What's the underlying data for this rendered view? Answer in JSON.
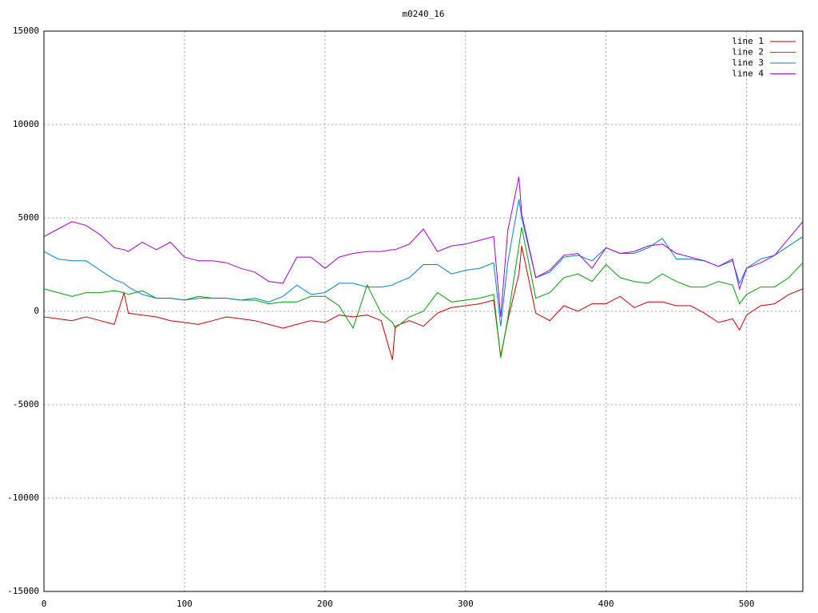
{
  "chart_data": {
    "type": "line",
    "title": "m0240_16",
    "x": [
      0,
      10,
      20,
      30,
      40,
      50,
      57,
      60,
      70,
      80,
      90,
      100,
      110,
      120,
      130,
      140,
      150,
      160,
      170,
      180,
      190,
      200,
      210,
      220,
      230,
      240,
      248,
      250,
      260,
      270,
      280,
      290,
      300,
      310,
      320,
      325,
      330,
      338,
      340,
      350,
      360,
      370,
      380,
      390,
      400,
      410,
      420,
      430,
      440,
      450,
      460,
      470,
      480,
      490,
      495,
      500,
      510,
      520,
      530,
      540
    ],
    "series": [
      {
        "name": "line 1",
        "color": "#cc0000",
        "values": [
          -300,
          -400,
          -500,
          -300,
          -500,
          -700,
          1000,
          -100,
          -200,
          -300,
          -500,
          -600,
          -700,
          -500,
          -300,
          -400,
          -500,
          -700,
          -900,
          -700,
          -500,
          -600,
          -200,
          -300,
          -200,
          -500,
          -2600,
          -800,
          -500,
          -800,
          -100,
          200,
          300,
          400,
          600,
          -2400,
          -500,
          2000,
          3500,
          -100,
          -500,
          300,
          0,
          400,
          400,
          800,
          200,
          500,
          500,
          300,
          300,
          -100,
          -600,
          -400,
          -1000,
          -200,
          300,
          400,
          900,
          1200
        ]
      },
      {
        "name": "line 2",
        "color": "#00a000",
        "values": [
          1200,
          1000,
          800,
          1000,
          1000,
          1100,
          1000,
          900,
          1100,
          700,
          700,
          600,
          800,
          700,
          700,
          600,
          600,
          400,
          500,
          500,
          800,
          800,
          300,
          -900,
          1400,
          -100,
          -600,
          -900,
          -300,
          0,
          1000,
          500,
          600,
          700,
          900,
          -2500,
          -400,
          3500,
          4500,
          700,
          1000,
          1800,
          2000,
          1600,
          2500,
          1800,
          1600,
          1500,
          2000,
          1600,
          1300,
          1300,
          1600,
          1400,
          400,
          900,
          1300,
          1300,
          1800,
          2600
        ]
      },
      {
        "name": "line 3",
        "color": "#0080d0",
        "values": [
          3200,
          2800,
          2700,
          2700,
          2200,
          1700,
          1500,
          1300,
          900,
          700,
          700,
          600,
          700,
          700,
          700,
          600,
          700,
          500,
          800,
          1400,
          900,
          1000,
          1500,
          1500,
          1300,
          1300,
          1400,
          1500,
          1800,
          2500,
          2500,
          2000,
          2200,
          2300,
          2600,
          -800,
          2600,
          6000,
          5000,
          1800,
          2100,
          2900,
          3000,
          2700,
          3400,
          3100,
          3100,
          3400,
          3900,
          2800,
          2800,
          2700,
          2400,
          2700,
          1500,
          2300,
          2800,
          3000,
          3500,
          4000
        ]
      },
      {
        "name": "line 4",
        "color": "#a000d0",
        "values": [
          4000,
          4400,
          4800,
          4600,
          4100,
          3400,
          3300,
          3200,
          3700,
          3300,
          3700,
          2900,
          2700,
          2700,
          2600,
          2300,
          2100,
          1600,
          1500,
          2900,
          2900,
          2300,
          2900,
          3100,
          3200,
          3200,
          3300,
          3300,
          3600,
          4400,
          3200,
          3500,
          3600,
          3800,
          4000,
          -300,
          4300,
          7200,
          5200,
          1800,
          2200,
          3000,
          3100,
          2300,
          3400,
          3100,
          3200,
          3500,
          3600,
          3100,
          2900,
          2700,
          2400,
          2800,
          1200,
          2300,
          2600,
          3000,
          3900,
          4800
        ]
      }
    ],
    "xlim": [
      0,
      540
    ],
    "xticks": [
      0,
      100,
      200,
      300,
      400,
      500
    ],
    "ylim": [
      -15000,
      15000
    ],
    "yticks": [
      -15000,
      -10000,
      -5000,
      0,
      5000,
      10000,
      15000
    ],
    "grid": true,
    "legend": "top-right"
  }
}
